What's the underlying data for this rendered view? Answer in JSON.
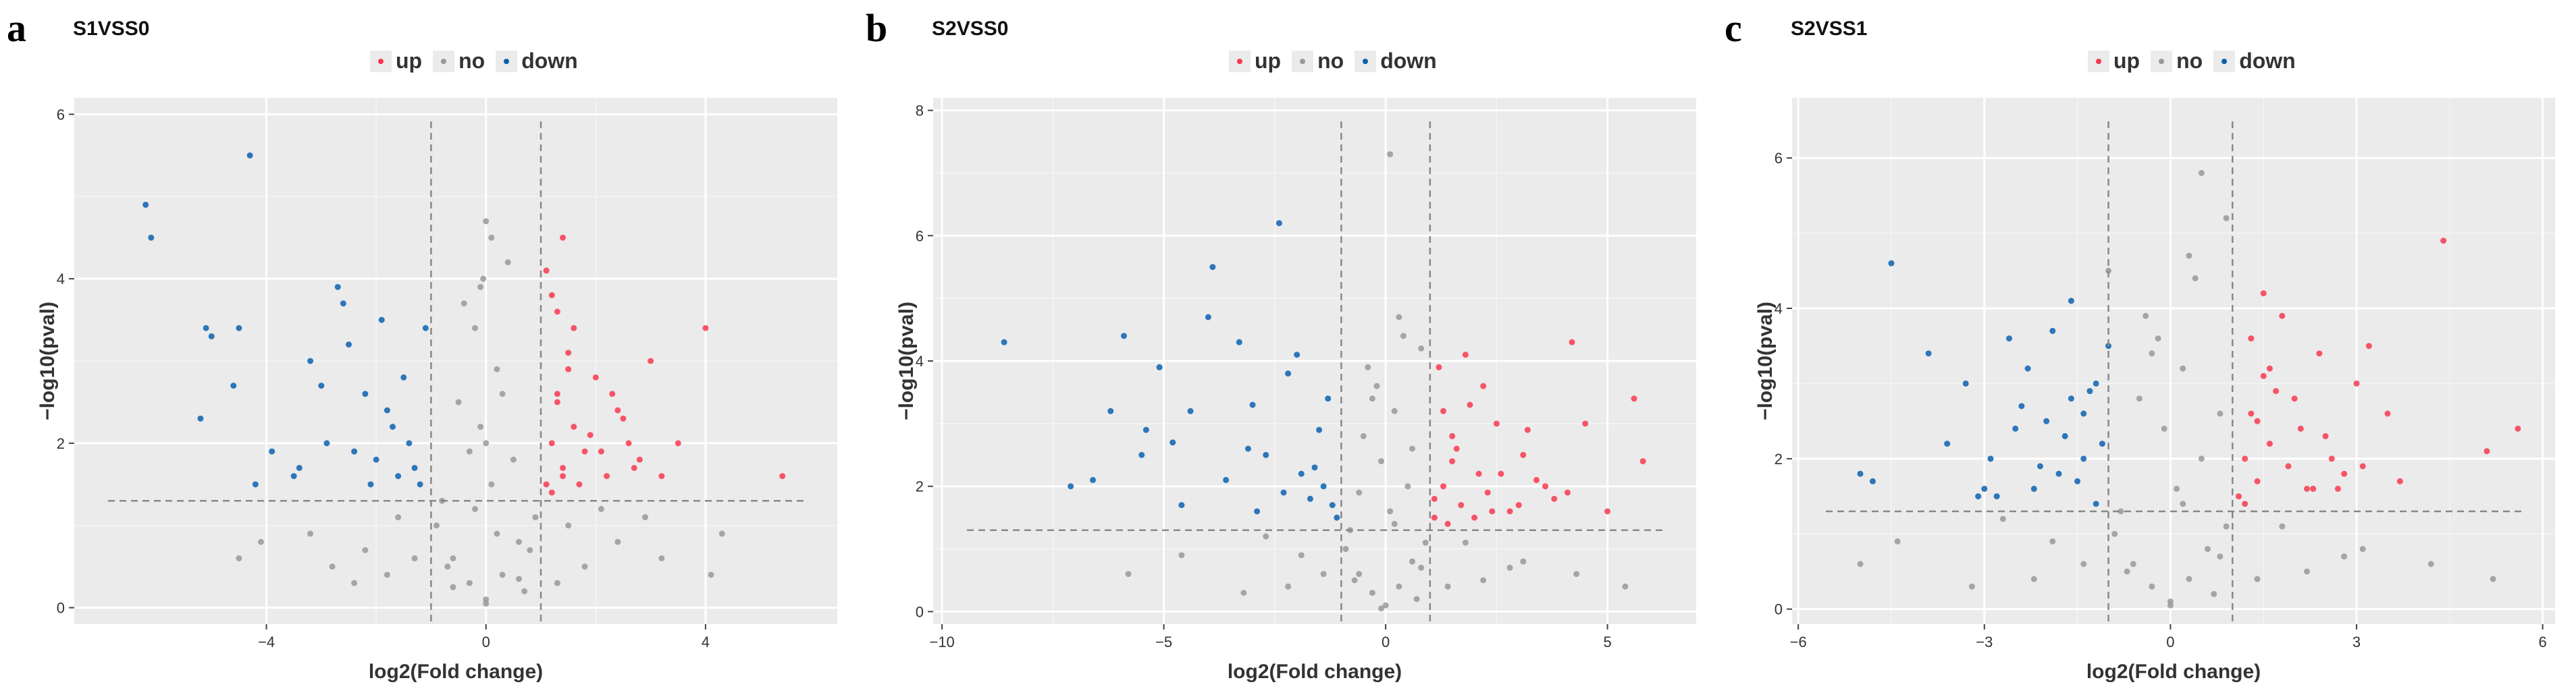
{
  "legend": {
    "items": [
      {
        "label": "up",
        "color": "#f8394f"
      },
      {
        "label": "no",
        "color": "#999999"
      },
      {
        "label": "down",
        "color": "#0a62b0"
      }
    ]
  },
  "chart_data": [
    {
      "type": "scatter",
      "letter": "a",
      "title": "S1VSS0",
      "xlabel": "log2(Fold change)",
      "ylabel": "−log10(pval)",
      "xlim": [
        -7.5,
        6.4
      ],
      "ylim": [
        -0.2,
        6.2
      ],
      "xticks": [
        -4,
        0,
        4
      ],
      "yticks": [
        0,
        2,
        4,
        6
      ],
      "fc_cutoff": 1,
      "p_cutoff": 1.3,
      "series": [
        {
          "name": "up",
          "color": "#f8394f",
          "x": [
            1.1,
            1.2,
            1.3,
            1.4,
            1.5,
            1.6,
            1.8,
            2.0,
            2.2,
            2.4,
            2.6,
            2.8,
            3.0,
            3.2,
            1.2,
            1.4,
            1.6,
            1.9,
            2.3,
            2.7,
            1.1,
            1.3,
            1.5,
            1.2,
            1.4,
            4.0,
            5.4,
            3.5,
            1.7,
            2.1,
            2.5,
            1.3
          ],
          "y": [
            1.5,
            2.0,
            2.6,
            1.7,
            3.1,
            2.2,
            1.9,
            2.8,
            1.6,
            2.4,
            2.0,
            1.8,
            3.0,
            1.6,
            3.8,
            4.5,
            3.4,
            2.1,
            2.6,
            1.7,
            4.1,
            3.6,
            2.9,
            1.4,
            1.6,
            3.4,
            1.6,
            2.0,
            1.5,
            1.9,
            2.3,
            2.5
          ]
        },
        {
          "name": "no",
          "color": "#999999",
          "x": [
            0.0,
            -0.3,
            0.3,
            -0.6,
            0.6,
            -0.9,
            0.9,
            0.1,
            -0.1,
            0.2,
            -0.2,
            0.5,
            -0.5,
            0.8,
            -0.8,
            0.4,
            -0.4,
            0.0,
            0.7,
            -0.7,
            0.2,
            -0.2,
            1.3,
            -1.3,
            1.8,
            -1.8,
            2.4,
            -2.4,
            3.2,
            -3.2,
            4.1,
            -4.5,
            0.1,
            -0.1,
            0.3,
            -0.3,
            1.5,
            -1.6,
            2.1,
            -2.2,
            0.0,
            0.0,
            -0.05,
            0.6,
            -0.6,
            2.9,
            -2.8,
            4.3,
            -4.1
          ],
          "y": [
            0.1,
            0.3,
            0.4,
            0.6,
            0.8,
            1.0,
            1.1,
            1.5,
            2.2,
            2.9,
            3.4,
            1.8,
            2.5,
            0.7,
            1.3,
            4.2,
            3.7,
            4.7,
            0.2,
            0.5,
            0.9,
            1.2,
            0.3,
            0.6,
            0.5,
            0.4,
            0.8,
            0.3,
            0.6,
            0.9,
            0.4,
            0.6,
            4.5,
            3.9,
            2.6,
            1.9,
            1.0,
            1.1,
            1.2,
            0.7,
            0.05,
            2.0,
            4.0,
            0.35,
            0.25,
            1.1,
            0.5,
            0.9,
            0.8
          ]
        },
        {
          "name": "down",
          "color": "#0a62b0",
          "x": [
            -6.2,
            -6.1,
            -4.3,
            -5.1,
            -5.0,
            -4.6,
            -4.5,
            -3.9,
            -3.5,
            -3.2,
            -2.9,
            -2.7,
            -2.5,
            -2.2,
            -2.0,
            -1.8,
            -1.6,
            -1.4,
            -1.2,
            -1.1,
            -2.4,
            -3.0,
            -1.7,
            -1.3,
            -1.9,
            -2.1,
            -5.2,
            -4.2,
            -3.4,
            -2.6,
            -1.5
          ],
          "y": [
            4.9,
            4.5,
            5.5,
            3.4,
            3.3,
            2.7,
            3.4,
            1.9,
            1.6,
            3.0,
            2.0,
            3.9,
            3.2,
            2.6,
            1.8,
            2.4,
            1.6,
            2.0,
            1.5,
            3.4,
            1.9,
            2.7,
            2.2,
            1.7,
            3.5,
            1.5,
            2.3,
            1.5,
            1.7,
            3.7,
            2.8
          ]
        }
      ]
    },
    {
      "type": "scatter",
      "letter": "b",
      "title": "S2VSS0",
      "xlabel": "log2(Fold change)",
      "ylabel": "−log10(pval)",
      "xlim": [
        -10.2,
        7.0
      ],
      "ylim": [
        -0.2,
        8.2
      ],
      "xticks": [
        -10,
        -5,
        0,
        5
      ],
      "yticks": [
        0,
        2,
        4,
        6,
        8
      ],
      "fc_cutoff": 1,
      "p_cutoff": 1.3,
      "series": [
        {
          "name": "up",
          "color": "#f8394f",
          "x": [
            1.1,
            1.3,
            1.5,
            1.7,
            1.9,
            2.1,
            2.3,
            2.5,
            2.8,
            3.1,
            3.4,
            3.8,
            4.2,
            4.5,
            5.0,
            5.8,
            1.2,
            1.4,
            1.6,
            1.8,
            2.0,
            2.2,
            2.6,
            3.0,
            3.6,
            4.1,
            5.6,
            1.1,
            1.5,
            2.4,
            3.2,
            1.3
          ],
          "y": [
            1.5,
            2.0,
            2.8,
            1.7,
            3.3,
            2.2,
            1.9,
            3.0,
            1.6,
            2.5,
            2.1,
            1.8,
            4.3,
            3.0,
            1.6,
            2.4,
            3.9,
            1.4,
            2.6,
            4.1,
            1.5,
            3.6,
            2.2,
            1.7,
            2.0,
            1.9,
            3.4,
            1.8,
            2.4,
            1.6,
            2.9,
            3.2
          ]
        },
        {
          "name": "no",
          "color": "#999999",
          "x": [
            0.0,
            -0.3,
            0.3,
            -0.6,
            0.6,
            -0.9,
            0.9,
            0.1,
            -0.1,
            0.2,
            -0.2,
            0.5,
            -0.5,
            0.8,
            -0.8,
            0.4,
            -0.4,
            0.1,
            0.7,
            -0.7,
            1.4,
            -1.4,
            2.2,
            -2.2,
            3.1,
            -3.2,
            4.3,
            -4.6,
            5.4,
            -5.8,
            0.3,
            -0.3,
            0.6,
            -0.6,
            0.8,
            1.8,
            -1.9,
            2.8,
            -2.7,
            -0.1,
            0.2
          ],
          "y": [
            0.1,
            0.3,
            0.4,
            0.6,
            0.8,
            1.0,
            1.1,
            1.6,
            2.4,
            3.2,
            3.6,
            2.0,
            2.8,
            0.7,
            1.3,
            4.4,
            3.9,
            7.3,
            0.2,
            0.5,
            0.4,
            0.6,
            0.5,
            0.4,
            0.8,
            0.3,
            0.6,
            0.9,
            0.4,
            0.6,
            4.7,
            3.4,
            2.6,
            1.9,
            4.2,
            1.1,
            0.9,
            0.7,
            1.2,
            0.05,
            1.4
          ]
        },
        {
          "name": "down",
          "color": "#0a62b0",
          "x": [
            -8.6,
            -7.1,
            -6.6,
            -6.2,
            -5.9,
            -5.5,
            -5.1,
            -4.8,
            -4.4,
            -4.0,
            -3.6,
            -3.3,
            -3.0,
            -2.7,
            -2.4,
            -2.2,
            -1.9,
            -1.7,
            -1.5,
            -1.3,
            -1.1,
            -2.3,
            -3.9,
            -2.9,
            -1.6,
            -1.2,
            -4.6,
            -3.1,
            -5.4,
            -2.0,
            -1.4
          ],
          "y": [
            4.3,
            2.0,
            2.1,
            3.2,
            4.4,
            2.5,
            3.9,
            2.7,
            3.2,
            4.7,
            2.1,
            4.3,
            3.3,
            2.5,
            6.2,
            3.8,
            2.2,
            1.8,
            2.9,
            3.4,
            1.5,
            1.9,
            5.5,
            1.6,
            2.3,
            1.7,
            1.7,
            2.6,
            2.9,
            4.1,
            2.0
          ]
        }
      ]
    },
    {
      "type": "scatter",
      "letter": "c",
      "title": "S2VSS1",
      "xlabel": "log2(Fold change)",
      "ylabel": "−log10(pval)",
      "xlim": [
        -6.1,
        6.2
      ],
      "ylim": [
        -0.2,
        6.8
      ],
      "xticks": [
        -6,
        -3,
        0,
        3,
        6
      ],
      "yticks": [
        0,
        2,
        4,
        6
      ],
      "fc_cutoff": 1,
      "p_cutoff": 1.3,
      "series": [
        {
          "name": "up",
          "color": "#f8394f",
          "x": [
            1.1,
            1.2,
            1.3,
            1.4,
            1.5,
            1.6,
            1.8,
            2.0,
            2.2,
            2.4,
            2.6,
            2.8,
            3.0,
            3.2,
            3.5,
            3.7,
            4.4,
            5.1,
            5.6,
            1.3,
            1.5,
            1.7,
            1.9,
            2.1,
            2.3,
            2.5,
            1.2,
            1.4,
            2.7,
            3.1,
            1.6
          ],
          "y": [
            1.5,
            2.0,
            2.6,
            1.7,
            3.1,
            2.2,
            3.9,
            2.8,
            1.6,
            3.4,
            2.0,
            1.8,
            3.0,
            3.5,
            2.6,
            1.7,
            4.9,
            2.1,
            2.4,
            3.6,
            4.2,
            2.9,
            1.9,
            2.4,
            1.6,
            2.3,
            1.4,
            2.5,
            1.6,
            1.9,
            3.2
          ]
        },
        {
          "name": "no",
          "color": "#999999",
          "x": [
            0.0,
            -0.3,
            0.3,
            -0.6,
            0.6,
            -0.9,
            0.9,
            0.1,
            -0.1,
            0.2,
            -0.2,
            0.5,
            -0.5,
            0.8,
            -0.8,
            0.4,
            -0.4,
            0.5,
            0.7,
            -0.7,
            1.4,
            -1.4,
            2.2,
            -2.2,
            3.1,
            -3.2,
            4.2,
            -4.4,
            5.2,
            -5.0,
            0.3,
            -0.3,
            0.8,
            0.9,
            -1.0,
            1.8,
            -1.9,
            2.8,
            -2.7,
            0.0,
            0.2
          ],
          "y": [
            0.1,
            0.3,
            0.4,
            0.6,
            0.8,
            1.0,
            1.1,
            1.6,
            2.4,
            3.2,
            3.6,
            2.0,
            2.8,
            0.7,
            1.3,
            4.4,
            3.9,
            5.8,
            0.2,
            0.5,
            0.4,
            0.6,
            0.5,
            0.4,
            0.8,
            0.3,
            0.6,
            0.9,
            0.4,
            0.6,
            4.7,
            3.4,
            2.6,
            5.2,
            4.5,
            1.1,
            0.9,
            0.7,
            1.2,
            0.05,
            1.4
          ]
        },
        {
          "name": "down",
          "color": "#0a62b0",
          "x": [
            -5.0,
            -4.5,
            -4.8,
            -3.9,
            -3.3,
            -2.9,
            -2.6,
            -2.3,
            -2.0,
            -1.8,
            -1.6,
            -1.4,
            -1.2,
            -1.1,
            -3.1,
            -2.5,
            -1.9,
            -1.5,
            -1.3,
            -2.2,
            -2.8,
            -1.7,
            -3.6,
            -1.2,
            -2.1,
            -1.6,
            -1.0,
            -2.4,
            -3.0,
            -1.4
          ],
          "y": [
            1.8,
            4.6,
            1.7,
            3.4,
            3.0,
            2.0,
            3.6,
            3.2,
            2.5,
            1.8,
            4.1,
            2.6,
            3.0,
            2.2,
            1.5,
            2.4,
            3.7,
            1.7,
            2.9,
            1.6,
            1.5,
            2.3,
            2.2,
            1.4,
            1.9,
            2.8,
            3.5,
            2.7,
            1.6,
            2.0
          ]
        }
      ]
    }
  ]
}
